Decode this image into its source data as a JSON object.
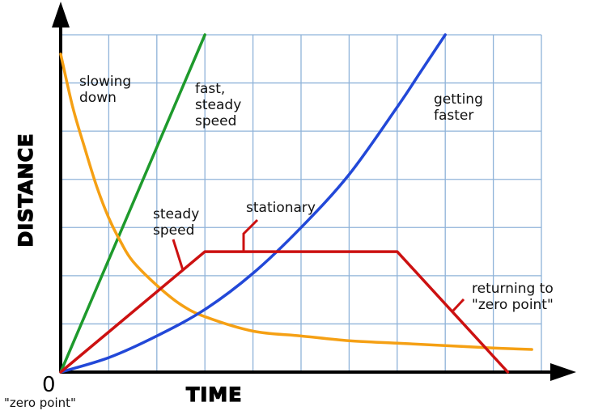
{
  "chart_data": {
    "type": "line",
    "title": "",
    "xlabel": "TIME",
    "ylabel": "DISTANCE",
    "origin_label": "0",
    "origin_caption": "\"zero point\"",
    "xlim": [
      0,
      10
    ],
    "ylim": [
      0,
      7
    ],
    "grid": true,
    "series": [
      {
        "name": "fast, steady speed",
        "color": "#1e9a2c",
        "x": [
          0,
          3
        ],
        "y": [
          0,
          7
        ]
      },
      {
        "name": "slowing down",
        "color": "#f5a014",
        "x": [
          0,
          0.25,
          0.5,
          0.75,
          1,
          1.25,
          1.5,
          2,
          2.5,
          3,
          4,
          5,
          6,
          7,
          8,
          9,
          9.8
        ],
        "y": [
          6.6,
          5.5,
          4.65,
          3.85,
          3.2,
          2.7,
          2.3,
          1.8,
          1.4,
          1.15,
          0.85,
          0.75,
          0.65,
          0.6,
          0.55,
          0.5,
          0.47
        ]
      },
      {
        "name": "getting faster",
        "color": "#2248d8",
        "x": [
          0,
          1,
          2,
          3,
          4,
          5,
          6,
          7,
          7.5,
          8
        ],
        "y": [
          0,
          0.3,
          0.75,
          1.3,
          2.05,
          3,
          4.1,
          5.5,
          6.25,
          7
        ]
      },
      {
        "name": "steady speed / stationary / returning to \"zero point\"",
        "color": "#cc1111",
        "x": [
          0,
          3,
          7,
          9.3
        ],
        "y": [
          0,
          2.5,
          2.5,
          0
        ]
      }
    ],
    "annotations": [
      {
        "lines": [
          "slowing",
          "down"
        ]
      },
      {
        "lines": [
          "fast,",
          "steady",
          "speed"
        ]
      },
      {
        "lines": [
          "getting",
          "faster"
        ]
      },
      {
        "lines": [
          "steady",
          "speed"
        ]
      },
      {
        "lines": [
          "stationary"
        ]
      },
      {
        "lines": [
          "returning to",
          "\"zero point\""
        ]
      }
    ]
  }
}
